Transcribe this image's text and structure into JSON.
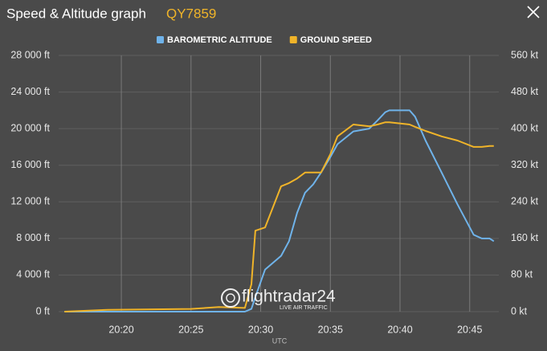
{
  "chart_data": {
    "type": "line",
    "title": "Speed & Altitude graph",
    "subtitle": "QY7859",
    "x_label": "UTC",
    "watermark": "flightradar24",
    "watermark_tagline": "LIVE AIR TRAFFIC",
    "x": [
      "20:15:55",
      "20:19:00",
      "20:25:00",
      "20:27:00",
      "20:28:52",
      "20:29:20",
      "20:29:37",
      "20:30:19",
      "20:31:28",
      "20:32:02",
      "20:32:37",
      "20:33:11",
      "20:33:46",
      "20:34:20",
      "20:35:00",
      "20:35:31",
      "20:36:39",
      "20:37:48",
      "20:38:23",
      "20:38:57",
      "20:39:14",
      "20:40:41",
      "20:41:05",
      "20:41:50",
      "20:42:59",
      "20:44:08",
      "20:45:17",
      "20:45:52",
      "20:46:26",
      "20:46:44"
    ],
    "series": [
      {
        "name": "BAROMETRIC ALTITUDE",
        "color": "#6fb3ea",
        "axis": "y",
        "values": [
          0,
          0,
          0,
          0,
          0,
          300,
          1600,
          4600,
          6100,
          7700,
          10800,
          13000,
          13900,
          15200,
          16900,
          18300,
          19700,
          20000,
          20900,
          21800,
          22000,
          22000,
          21300,
          18700,
          15200,
          11700,
          8400,
          8000,
          8000,
          7700
        ]
      },
      {
        "name": "GROUND SPEED",
        "color": "#f0b429",
        "axis": "y2",
        "values": [
          0,
          4,
          6,
          10,
          8,
          60,
          177,
          184,
          274,
          281,
          291,
          304,
          304,
          304,
          344,
          383,
          409,
          405,
          409,
          414,
          414,
          409,
          404,
          395,
          383,
          374,
          360,
          360,
          362,
          362
        ]
      }
    ],
    "xlim": [
      "20:15:30",
      "20:46:55"
    ],
    "xticks": [
      "20:20",
      "20:25",
      "20:30",
      "20:35",
      "20:40",
      "20:45"
    ],
    "ylim": [
      0,
      28000
    ],
    "yticks": [
      {
        "value": 0,
        "label": "0 ft"
      },
      {
        "value": 4000,
        "label": "4 000 ft"
      },
      {
        "value": 8000,
        "label": "8 000 ft"
      },
      {
        "value": 12000,
        "label": "12 000 ft"
      },
      {
        "value": 16000,
        "label": "16 000 ft"
      },
      {
        "value": 20000,
        "label": "20 000 ft"
      },
      {
        "value": 24000,
        "label": "24 000 ft"
      },
      {
        "value": 28000,
        "label": "28 000 ft"
      }
    ],
    "y2lim": [
      0,
      560
    ],
    "y2ticks": [
      {
        "value": 0,
        "label": "0 kt"
      },
      {
        "value": 80,
        "label": "80 kt"
      },
      {
        "value": 160,
        "label": "160 kt"
      },
      {
        "value": 240,
        "label": "240 kt"
      },
      {
        "value": 320,
        "label": "320 kt"
      },
      {
        "value": 400,
        "label": "400 kt"
      },
      {
        "value": 480,
        "label": "480 kt"
      },
      {
        "value": 560,
        "label": "560 kt"
      }
    ],
    "grid": true
  }
}
